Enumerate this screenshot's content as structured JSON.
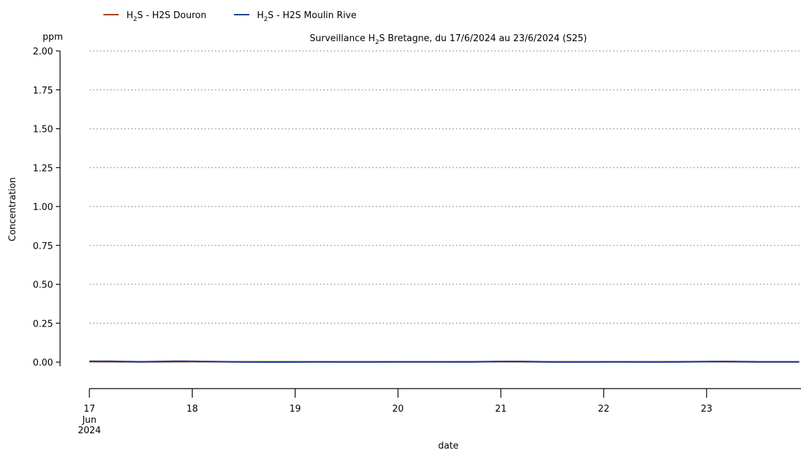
{
  "chart_data": {
    "type": "line",
    "title_prefix": "Surveillance H",
    "title_sub": "2",
    "title_suffix": "S Bretagne, du 17/6/2024 au 23/6/2024 (S25)",
    "unit_label": "ppm",
    "ylabel": "Concentration",
    "xlabel": "date",
    "ylim": [
      0,
      2.0
    ],
    "y_ticks": [
      "0.00",
      "0.25",
      "0.50",
      "0.75",
      "1.00",
      "1.25",
      "1.50",
      "1.75",
      "2.00"
    ],
    "x_ticks": [
      {
        "day": 17,
        "label": "17",
        "sub1": "Jun",
        "sub2": "2024"
      },
      {
        "day": 18,
        "label": "18"
      },
      {
        "day": 19,
        "label": "19"
      },
      {
        "day": 20,
        "label": "20"
      },
      {
        "day": 21,
        "label": "21"
      },
      {
        "day": 22,
        "label": "22"
      },
      {
        "day": 23,
        "label": "23"
      }
    ],
    "x_range_days": [
      17,
      23.9
    ],
    "grid": "horizontal dotted",
    "legend_placement": "top-left",
    "series": [
      {
        "name_prefix": "H",
        "name_sub": "2",
        "name_suffix": "S - H2S Douron",
        "color": "#a0400f",
        "x": [
          17.0,
          17.5,
          18.0,
          18.5,
          19.0,
          19.5,
          20.0,
          20.5,
          21.0,
          21.5,
          22.0,
          22.5,
          23.0,
          23.5,
          23.9
        ],
        "y": [
          0.003,
          0.002,
          0.003,
          0.002,
          0.002,
          0.002,
          0.002,
          0.002,
          0.003,
          0.002,
          0.002,
          0.002,
          0.003,
          0.002,
          0.002
        ]
      },
      {
        "name_prefix": "H",
        "name_sub": "2",
        "name_suffix": "S - H2S Moulin Rive",
        "color": "#1f3c8c",
        "x": [
          17.0,
          17.2,
          17.5,
          17.9,
          18.2,
          18.5,
          18.8,
          19.2,
          19.6,
          20.0,
          20.4,
          20.7,
          21.0,
          21.2,
          21.5,
          21.8,
          22.1,
          22.4,
          22.7,
          23.0,
          23.2,
          23.5,
          23.9
        ],
        "y": [
          0.005,
          0.005,
          0.002,
          0.006,
          0.003,
          0.001,
          0.0,
          0.002,
          0.001,
          0.002,
          0.002,
          0.001,
          0.004,
          0.004,
          0.001,
          0.001,
          0.002,
          0.001,
          0.001,
          0.003,
          0.004,
          0.002,
          0.002
        ]
      }
    ]
  }
}
